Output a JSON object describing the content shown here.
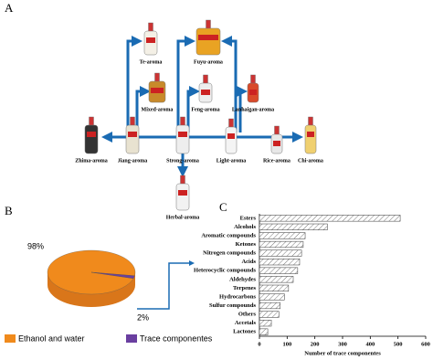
{
  "diagram": {
    "label": "A",
    "nodes": [
      {
        "label": "Te-aroma"
      },
      {
        "label": "Fuyu-aroma"
      },
      {
        "label": "Mixed-aroma"
      },
      {
        "label": "Feng-aroma"
      },
      {
        "label": "Lanhaigan-aroma"
      },
      {
        "label": "Zhima-aroma"
      },
      {
        "label": "Jiang-aroma"
      },
      {
        "label": "Strong-aroma"
      },
      {
        "label": "Light-aroma"
      },
      {
        "label": "Rice-aroma"
      },
      {
        "label": "Chi-aroma"
      },
      {
        "label": "Herbal-aroma"
      }
    ]
  },
  "chart_data": [
    {
      "type": "pie",
      "label": "B",
      "series": [
        {
          "name": "Ethanol and water",
          "color": "#f08a1c",
          "values": [
            98
          ],
          "value_labels": [
            "98%"
          ]
        },
        {
          "name": "Trace componentes",
          "color": "#6a3fa0",
          "values": [
            2
          ],
          "value_labels": [
            "2%"
          ]
        }
      ]
    },
    {
      "type": "hbar",
      "label": "C",
      "xlabel": "Number of trace componentes",
      "categories": [
        "Esters",
        "Alcohols",
        "Aromatic compounds",
        "Ketones",
        "Nitrogen compounds",
        "Acids",
        "Heterocyclic compounds",
        "Aldehydes",
        "Terpenes",
        "Hydrocarbons",
        "Sulfur compounds",
        "Others",
        "Accetals",
        "Lactones"
      ],
      "values": [
        508,
        245,
        165,
        158,
        152,
        145,
        138,
        122,
        105,
        90,
        75,
        70,
        43,
        30
      ],
      "xlim": [
        0,
        600
      ],
      "xticks": [
        0,
        100,
        200,
        300,
        400,
        500,
        600
      ],
      "hatch": true
    }
  ]
}
